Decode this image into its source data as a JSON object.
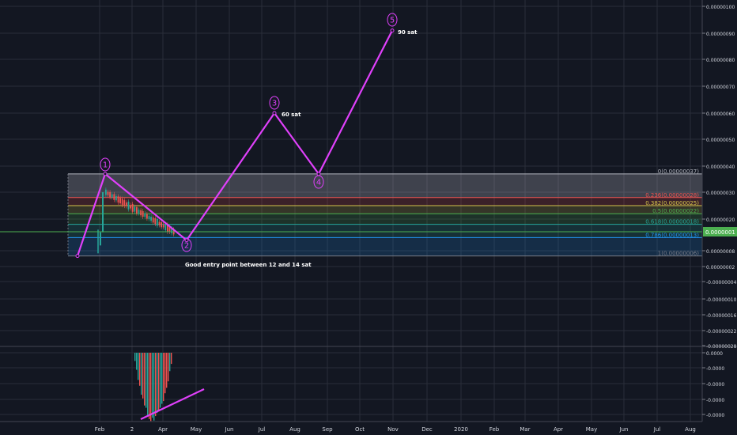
{
  "colors": {
    "background": "#131722",
    "grid": "#2a2e39",
    "axis_text": "#d1d4dc",
    "wave": "#e040fb",
    "candle_up": "#26a69a",
    "candle_down": "#ef5350",
    "price_line": "#4caf50"
  },
  "chart_data": [
    {
      "type": "line",
      "title": "",
      "x_axis": {
        "ticks": [
          "Feb",
          "2",
          "Apr",
          "May",
          "Jun",
          "Jul",
          "Aug",
          "Sep",
          "Oct",
          "Nov",
          "Dec",
          "2020",
          "Feb",
          "Mar",
          "Apr",
          "May",
          "Jun",
          "Jul",
          "Aug"
        ]
      },
      "y_axis": {
        "ticks": [
          "0.00000100",
          "0.00000090",
          "0.00000080",
          "0.00000070",
          "0.00000060",
          "0.00000050",
          "0.00000040",
          "0.00000030",
          "0.00000020",
          "0.00000008",
          "0.00000002",
          "-0.00000004",
          "-0.00000010",
          "-0.00000016",
          "-0.00000022",
          "-0.00000028"
        ],
        "current_price": "0.0000001"
      },
      "fib_levels": [
        {
          "label": "0(0.00000037)",
          "color": "#b2b5be"
        },
        {
          "label": "0.236(0.00000028)",
          "color": "#ef5350"
        },
        {
          "label": "0.382(0.00000025)",
          "color": "#d4c44a"
        },
        {
          "label": "0.5(0.00000022)",
          "color": "#4caf50"
        },
        {
          "label": "0.618(0.00000018)",
          "color": "#26a69a"
        },
        {
          "label": "0.786(0.00000013)",
          "color": "#2196f3"
        },
        {
          "label": "1(0.00000006)",
          "color": "#787b86"
        }
      ],
      "wave": {
        "points": [
          {
            "label": "",
            "y": 6e-08
          },
          {
            "label": "1",
            "y": 3.7e-07
          },
          {
            "label": "2",
            "y": 1.2e-07
          },
          {
            "label": "3",
            "y": 6e-07
          },
          {
            "label": "4",
            "y": 3.7e-07
          },
          {
            "label": "5",
            "y": 9.1e-07
          }
        ]
      },
      "annotations": [
        {
          "text": "60 sat"
        },
        {
          "text": "90 sat"
        },
        {
          "text": "Good entry point between 12 and 14 sat"
        }
      ]
    },
    {
      "type": "bar",
      "title": "",
      "y_axis": {
        "ticks": [
          "0.0000",
          "-0.0000",
          "-0.0000",
          "-0.0000",
          "-0.0000"
        ]
      }
    }
  ]
}
